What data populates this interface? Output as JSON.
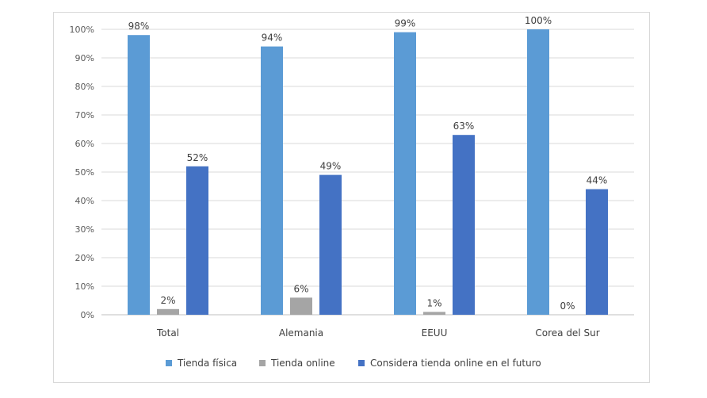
{
  "chart_data": {
    "type": "bar",
    "categories": [
      "Total",
      "Alemania",
      "EEUU",
      "Corea del Sur"
    ],
    "series": [
      {
        "name": "Tienda física",
        "values": [
          98,
          94,
          99,
          100
        ],
        "labels": [
          "98%",
          "94%",
          "99%",
          "100%"
        ],
        "color": "#5b9bd5"
      },
      {
        "name": "Tienda online",
        "values": [
          2,
          6,
          1,
          0
        ],
        "labels": [
          "2%",
          "6%",
          "1%",
          "0%"
        ],
        "color": "#a5a5a5"
      },
      {
        "name": "Considera tienda online en el futuro",
        "values": [
          52,
          49,
          63,
          44
        ],
        "labels": [
          "52%",
          "49%",
          "63%",
          "44%"
        ],
        "color": "#4472c4"
      }
    ],
    "y_ticks": [
      "0%",
      "10%",
      "20%",
      "30%",
      "40%",
      "50%",
      "60%",
      "70%",
      "80%",
      "90%",
      "100%"
    ],
    "ylim": [
      0,
      100
    ],
    "grid": true,
    "legend_position": "bottom"
  }
}
